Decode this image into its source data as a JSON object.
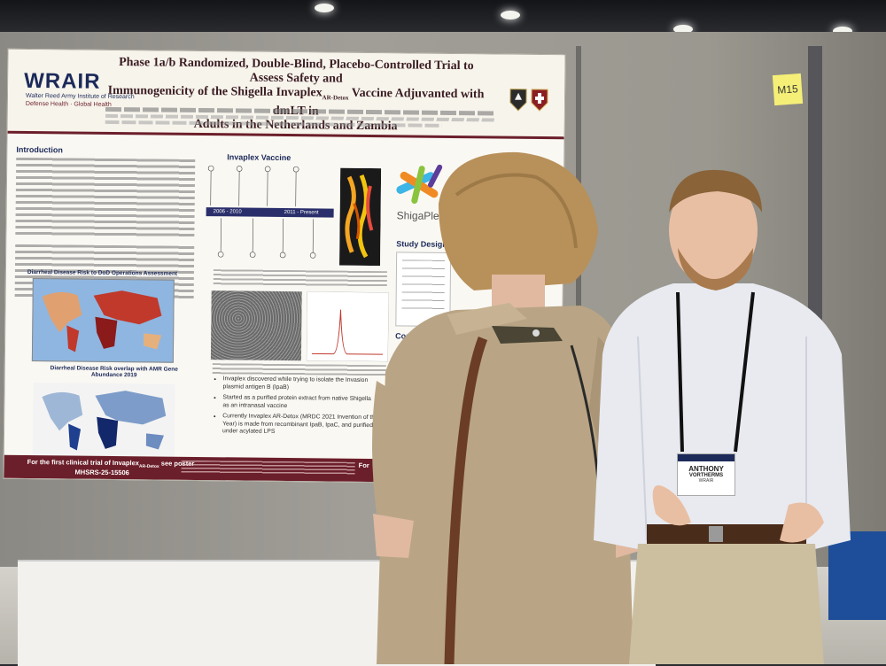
{
  "scene": {
    "sticky_note": "M15"
  },
  "poster": {
    "logo": "WRAIR",
    "logo_subtitle": "Walter Reed Army Institute of Research",
    "logo_tagline": "Defense Health · Global Health",
    "title_line1": "Phase 1a/b Randomized, Double-Blind, Placebo-Controlled Trial to Assess Safety and",
    "title_line2": "Immunogenicity of the Shigella Invaplex",
    "title_sub": "AR-Detox",
    "title_line2b": "Vaccine Adjuvanted with dmLT in",
    "title_line3": "Adults in the Netherlands and Zambia",
    "sections": {
      "introduction": "Introduction",
      "invaplex": "Invaplex Vaccine",
      "study_design": "Study Design",
      "conclusion": "Conclusio",
      "map1_title": "Diarrheal Disease Risk to DoD Operations Assessment",
      "map2_title": "Diarrheal Disease Risk overlap with AMR Gene Abundance 2019"
    },
    "timeline": {
      "first": "2006 - 2010",
      "second": "2011 - Present"
    },
    "shigaplex": "ShigaPlex",
    "bullets": [
      "Invaplex discovered while trying to isolate the Invasion plasmid antigen B (IpaB)",
      "Started as a purified protein extract from native Shigella as an intranasal vaccine",
      "Currently Invaplex AR-Detox (MRDC 2021 Invention of the Year) is made from recombinant IpaB, IpaC, and purified under acylated LPS"
    ],
    "footer_line1": "For the first clinical trial of Invaplex",
    "footer_sub": "AR-Detox",
    "footer_line1b": "see poster",
    "footer_line2": "MHSRS-25-15506",
    "footer_right": "For"
  },
  "badge": {
    "name": "ANTHONY",
    "surname": "VORTHERMS",
    "org": "WRAIR"
  }
}
